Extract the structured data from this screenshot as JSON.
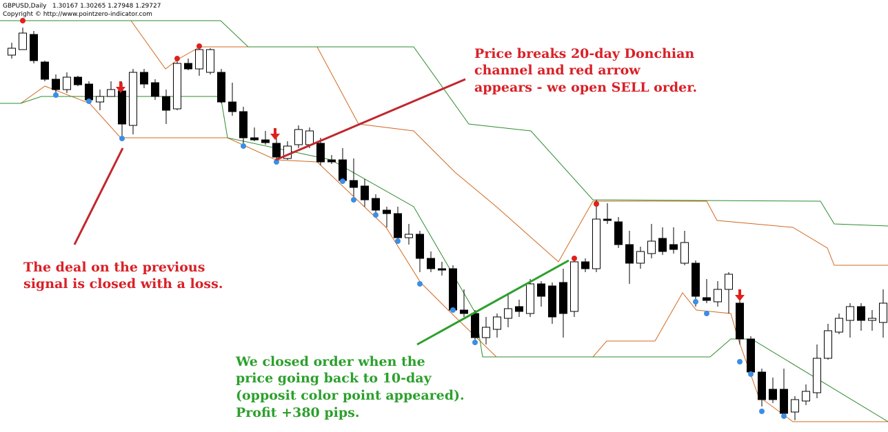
{
  "header": {
    "symbol": "GBPUSD,Daily",
    "ohlc": "1.30167 1.30265 1.27948 1.29727",
    "copyright": "Copyright © http://www.pointzero-indicator.com"
  },
  "annotations": {
    "sell": [
      "Price breaks 20-day Donchian",
      "channel and red arrow",
      "appears - we open SELL order."
    ],
    "loss": [
      "The deal on the previous",
      "signal is closed with a loss."
    ],
    "close": [
      "We closed order when the",
      "price going back to 10-day",
      "(opposit color point appeared).",
      "Profit +380 pips."
    ]
  }
}
